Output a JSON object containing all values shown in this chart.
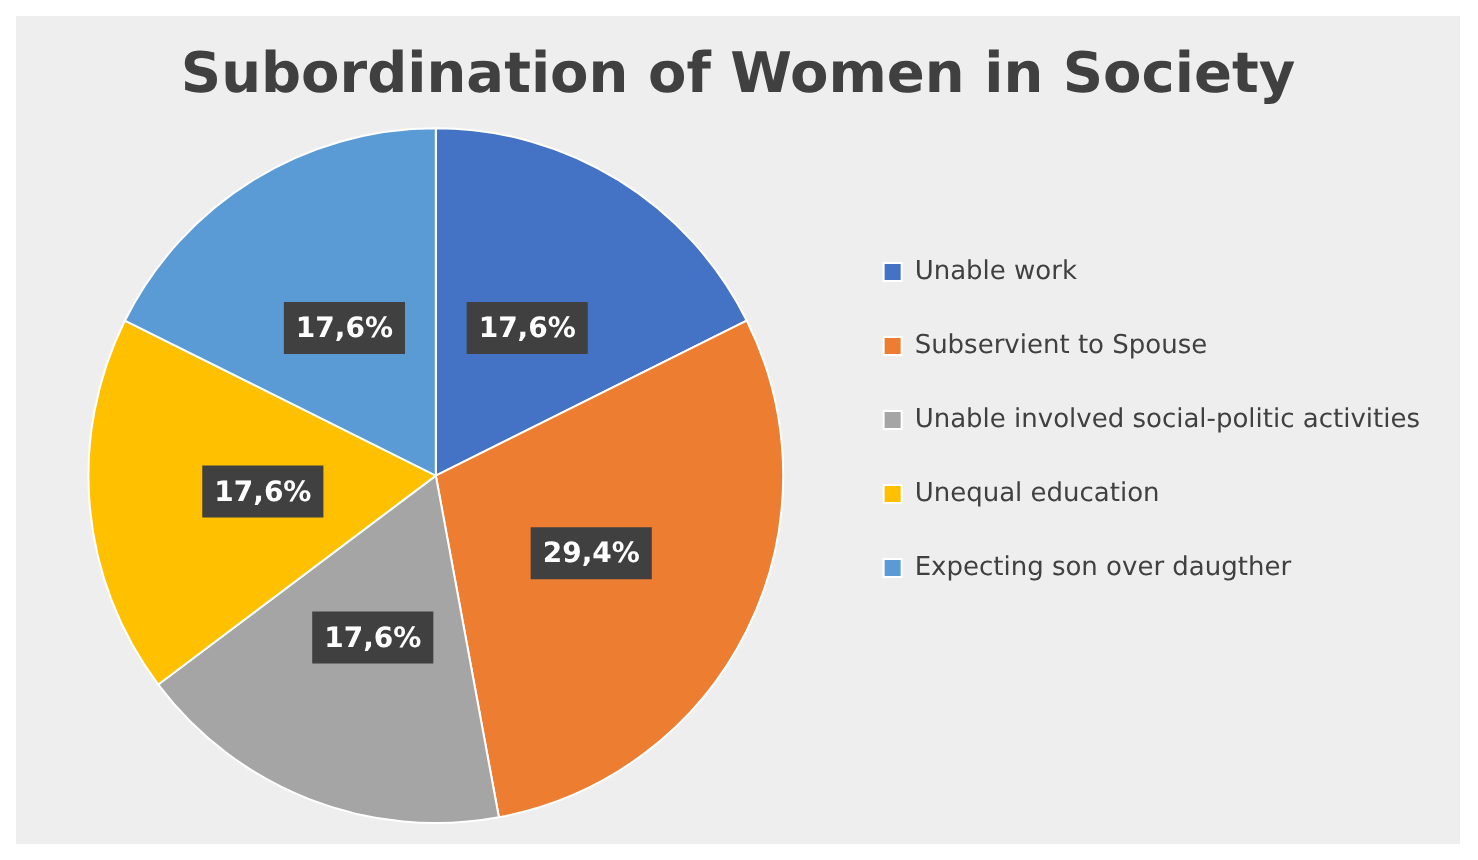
{
  "chart_data": {
    "type": "pie",
    "title": "Subordination of Women in Society",
    "categories": [
      "Unable work",
      "Subservient to Spouse",
      "Unable involved social-politic activities",
      "Unequal education",
      "Expecting son over daugther"
    ],
    "values": [
      17.6,
      29.4,
      17.6,
      17.6,
      17.6
    ],
    "value_labels": [
      "17,6%",
      "29,4%",
      "17,6%",
      "17,6%",
      "17,6%"
    ],
    "colors": [
      "#4472c4",
      "#ed7d31",
      "#a5a5a5",
      "#ffc000",
      "#5b9bd5"
    ],
    "legend": "right"
  }
}
